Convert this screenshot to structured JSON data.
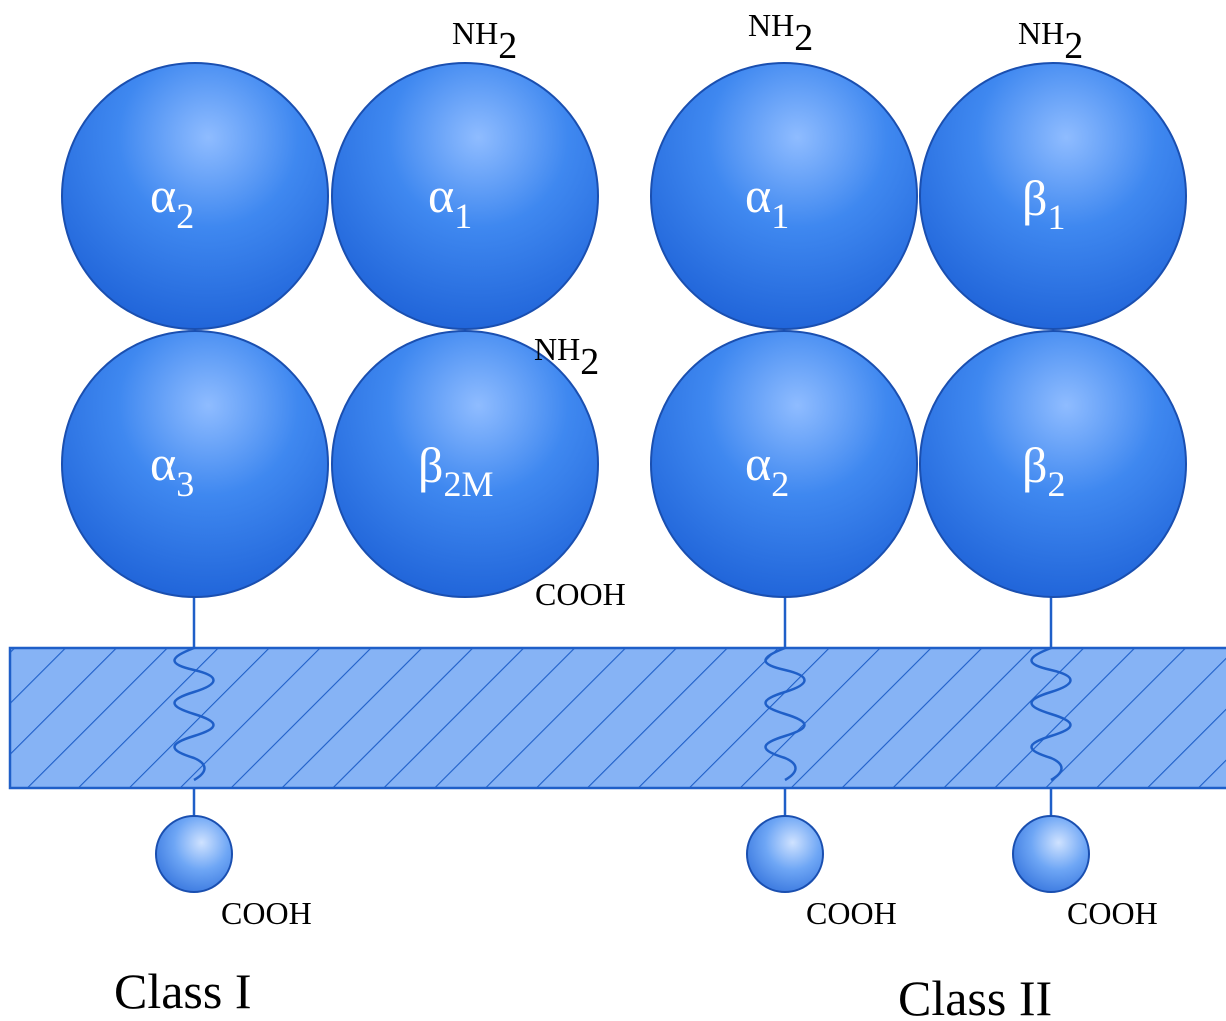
{
  "diagram": {
    "colors": {
      "sphere_light": "#8fbcff",
      "sphere_mid": "#3f88f0",
      "sphere_dark": "#1f63d8",
      "sphere_outline": "#1a4fb0",
      "membrane_fill": "#86b3f5",
      "membrane_stroke": "#1f5fc8",
      "text_on_sphere": "#ffffff",
      "text": "#000000"
    },
    "class_one": {
      "label": "Class I",
      "domains": {
        "a2": {
          "symbol": "α",
          "sub": "2"
        },
        "a1": {
          "symbol": "α",
          "sub": "1"
        },
        "a3": {
          "symbol": "α",
          "sub": "3"
        },
        "b2m": {
          "symbol": "β",
          "sub": "2M"
        }
      },
      "nh2_top": {
        "base": "NH",
        "sub": "2"
      },
      "nh2_b2m": {
        "base": "NH",
        "sub": "2"
      },
      "cooh_b2m": "COOH",
      "cooh_tail": "COOH"
    },
    "class_two": {
      "label": "Class II",
      "domains": {
        "a1": {
          "symbol": "α",
          "sub": "1"
        },
        "b1": {
          "symbol": "β",
          "sub": "1"
        },
        "a2": {
          "symbol": "α",
          "sub": "2"
        },
        "b2": {
          "symbol": "β",
          "sub": "2"
        }
      },
      "nh2_alpha": {
        "base": "NH",
        "sub": "2"
      },
      "nh2_beta": {
        "base": "NH",
        "sub": "2"
      },
      "cooh_alpha_tail": "COOH",
      "cooh_beta_tail": "COOH"
    }
  }
}
